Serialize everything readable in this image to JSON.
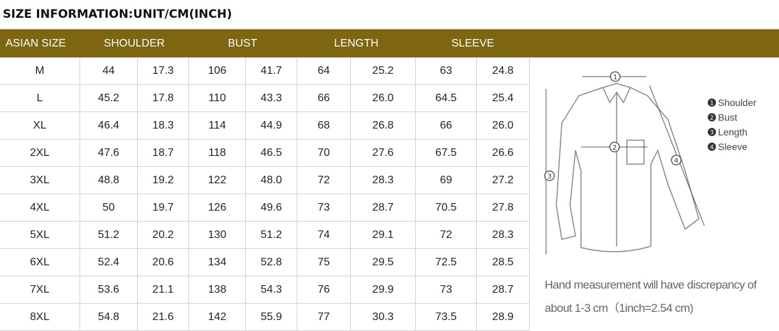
{
  "header": {
    "title": "SIZE INFORMATION:UNIT/CM(INCH)"
  },
  "table": {
    "columns": [
      "ASIAN SIZE",
      "SHOULDER",
      "BUST",
      "LENGTH",
      "SLEEVE"
    ],
    "rows": [
      [
        "M",
        "44",
        "17.3",
        "106",
        "41.7",
        "64",
        "25.2",
        "63",
        "24.8"
      ],
      [
        "L",
        "45.2",
        "17.8",
        "110",
        "43.3",
        "66",
        "26.0",
        "64.5",
        "25.4"
      ],
      [
        "XL",
        "46.4",
        "18.3",
        "114",
        "44.9",
        "68",
        "26.8",
        "66",
        "26.0"
      ],
      [
        "2XL",
        "47.6",
        "18.7",
        "118",
        "46.5",
        "70",
        "27.6",
        "67.5",
        "26.6"
      ],
      [
        "3XL",
        "48.8",
        "19.2",
        "122",
        "48.0",
        "72",
        "28.3",
        "69",
        "27.2"
      ],
      [
        "4XL",
        "50",
        "19.7",
        "126",
        "49.6",
        "73",
        "28.7",
        "70.5",
        "27.8"
      ],
      [
        "5XL",
        "51.2",
        "20.2",
        "130",
        "51.2",
        "74",
        "29.1",
        "72",
        "28.3"
      ],
      [
        "6XL",
        "52.4",
        "20.6",
        "134",
        "52.8",
        "75",
        "29.5",
        "72.5",
        "28.5"
      ],
      [
        "7XL",
        "53.6",
        "21.1",
        "138",
        "54.3",
        "76",
        "29.9",
        "73",
        "28.7"
      ],
      [
        "8XL",
        "54.8",
        "21.6",
        "142",
        "55.9",
        "77",
        "30.3",
        "73.5",
        "28.9"
      ]
    ]
  },
  "diagram": {
    "legend": [
      {
        "number": "1",
        "label": "Shoulder"
      },
      {
        "number": "2",
        "label": "Bust"
      },
      {
        "number": "3",
        "label": "Length"
      },
      {
        "number": "4",
        "label": "Sleeve"
      }
    ],
    "note": "Hand measurement will have discrepancy of about 1-3 cm（1inch=2.54 cm)"
  }
}
